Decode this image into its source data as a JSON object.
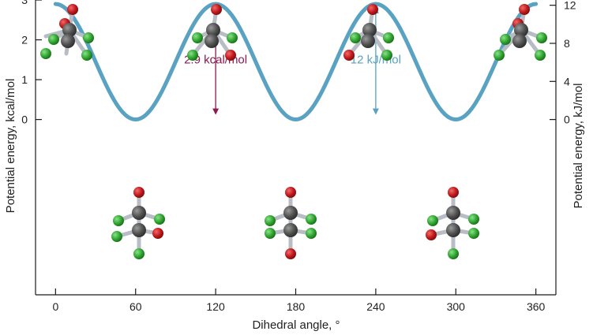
{
  "chart_data": {
    "type": "line",
    "xlabel": "Dihedral angle, °",
    "ylabel_left": "Potential energy, kcal/mol",
    "ylabel_right": "Potential energy, kJ/mol",
    "x_ticks": [
      "0",
      "60",
      "120",
      "180",
      "240",
      "300",
      "360"
    ],
    "y_ticks_left": [
      "0",
      "1",
      "2",
      "3"
    ],
    "y_ticks_right": [
      "0",
      "4",
      "8",
      "12"
    ],
    "xlim": [
      -15,
      375
    ],
    "ylim": [
      -4.4,
      3.0
    ],
    "series": [
      {
        "x": [
          0,
          60,
          120,
          180,
          240,
          300,
          360
        ],
        "y": [
          2.9,
          0,
          2.9,
          0,
          2.9,
          0,
          2.9
        ]
      }
    ],
    "annotations": [
      {
        "text": "2.9 kcal/mol",
        "x": 120,
        "y_from": 0,
        "y_to": 2.9,
        "color": "#8b1a4f"
      },
      {
        "text": "12 kJ/mol",
        "x": 240,
        "y_from": 0,
        "y_to": 2.9,
        "color": "#5aa2c2"
      }
    ],
    "colors": {
      "curve": "#5aa2c2",
      "carbon": "#5a5a5a",
      "oxygen": "#c0181b",
      "chlorine": "#2ea52e"
    }
  }
}
